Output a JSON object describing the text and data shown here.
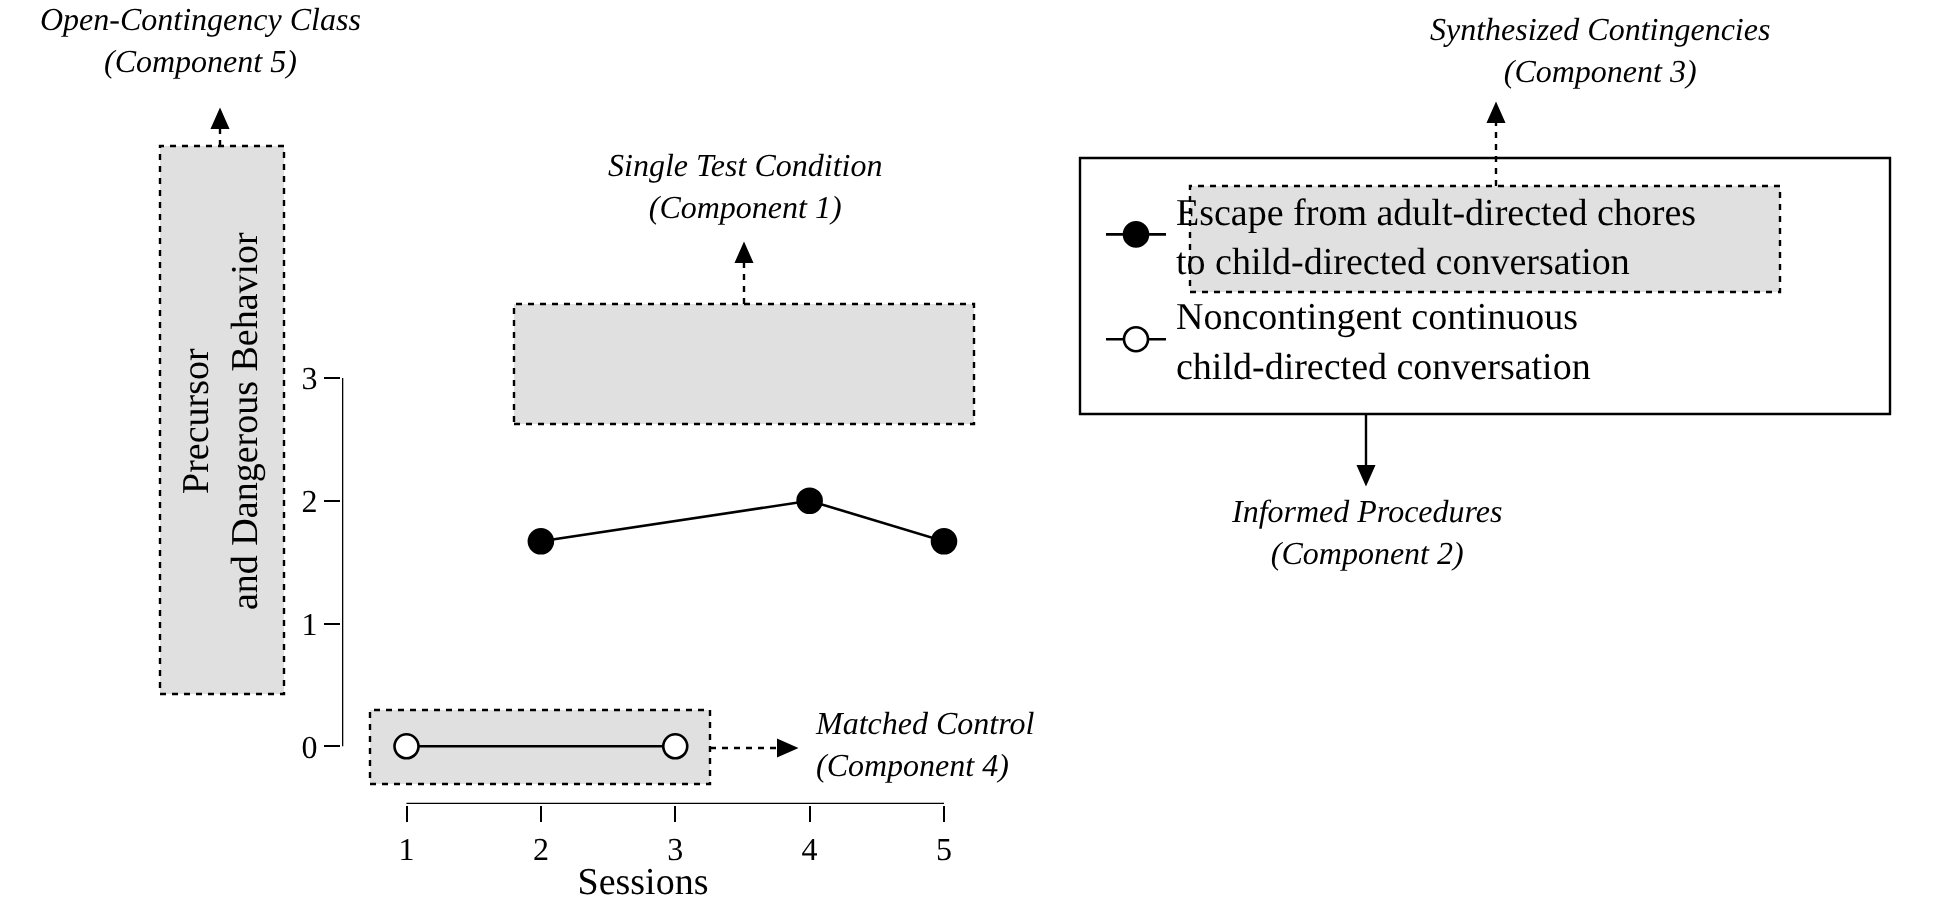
{
  "chart_data": {
    "type": "line",
    "xlabel": "Sessions",
    "ylabel": "Precursor\nand Dangerous Behavior",
    "series": [
      {
        "name": "Escape from adult-directed chores\nto child-directed conversation",
        "color": "#000000",
        "x": [
          2,
          4,
          5
        ],
        "values": [
          1.67,
          2,
          1.67
        ]
      },
      {
        "name": "Noncontingent continuous\nchild-directed conversation",
        "color": "#ffffff",
        "x": [
          1,
          3
        ],
        "values": [
          0,
          0
        ]
      }
    ],
    "xlim": [
      0.52,
      5
    ],
    "ylim": [
      -0.47,
      3
    ],
    "xticks": [
      1,
      2,
      3,
      4,
      5
    ],
    "yticks": [
      0,
      1,
      2,
      3
    ],
    "grid": false,
    "legend": "top right",
    "marker": "circle",
    "line_style": "solid",
    "annotations": [
      "Open-Contingency Class\n(Component 5)",
      "Single Test Condition\n(Component 1)",
      "Matched Control\n(Component 4)",
      "Synthesized Contingencies\n(Component 3)",
      "Informed Procedures\n(Component 2)"
    ]
  }
}
